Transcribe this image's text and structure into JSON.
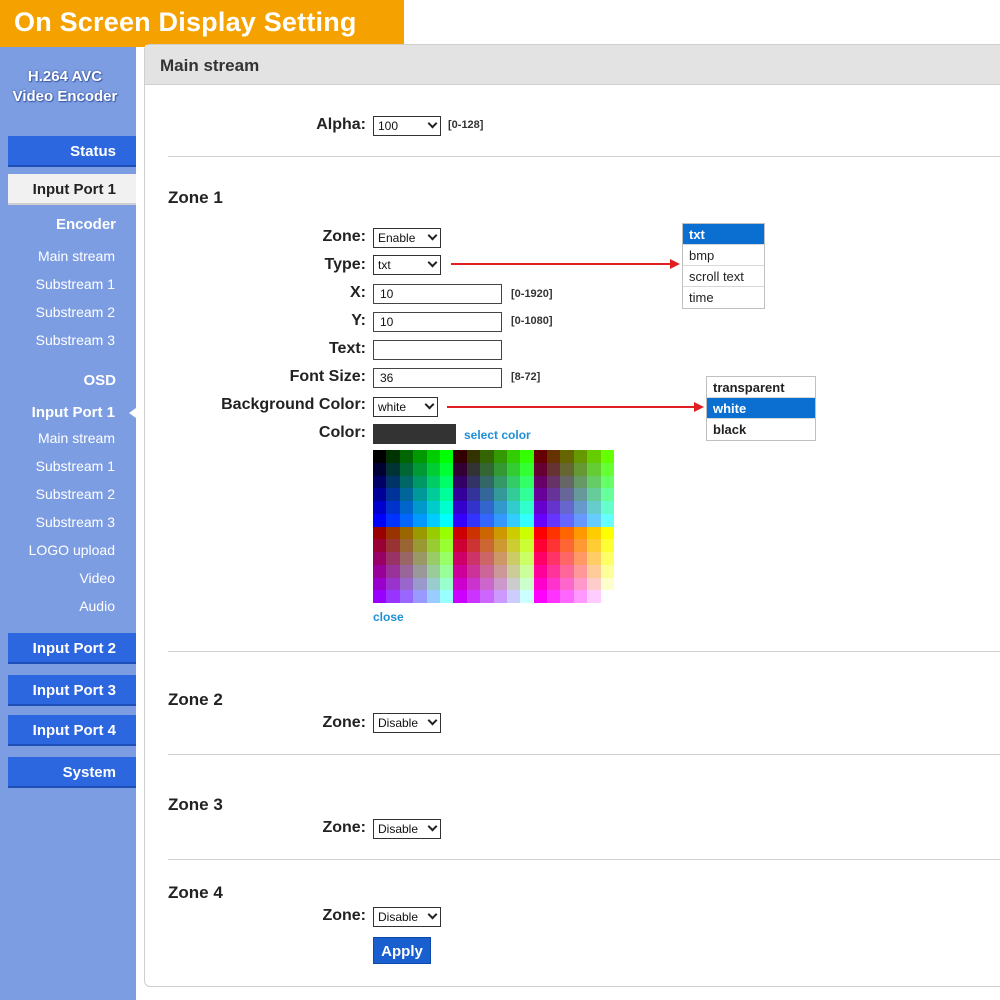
{
  "banner": {
    "title": "On Screen Display Setting"
  },
  "sidebar": {
    "brand_line1": "H.264 AVC",
    "brand_line2": "Video Encoder",
    "status": "Status",
    "input_port_1": "Input Port 1",
    "encoder_section": "Encoder",
    "encoder_items": [
      "Main stream",
      "Substream 1",
      "Substream 2",
      "Substream 3"
    ],
    "osd_section": "OSD",
    "osd_active": "Input Port 1",
    "osd_items": [
      "Main stream",
      "Substream 1",
      "Substream 2",
      "Substream 3",
      "LOGO upload",
      "Video",
      "Audio"
    ],
    "input_port_2": "Input Port 2",
    "input_port_3": "Input Port 3",
    "input_port_4": "Input Port 4",
    "system": "System"
  },
  "main": {
    "title": "Main stream",
    "alpha_label": "Alpha:",
    "alpha_value": "100",
    "alpha_range": "[0-128]",
    "zone1": {
      "title": "Zone 1",
      "zone_label": "Zone:",
      "zone_value": "Enable",
      "type_label": "Type:",
      "type_value": "txt",
      "x_label": "X:",
      "x_value": "10",
      "x_range": "[0-1920]",
      "y_label": "Y:",
      "y_value": "10",
      "y_range": "[0-1080]",
      "text_label": "Text:",
      "text_value": "",
      "font_size_label": "Font Size:",
      "font_size_value": "36",
      "font_size_range": "[8-72]",
      "bg_color_label": "Background Color:",
      "bg_color_value": "white",
      "color_label": "Color:",
      "color_value": "#333333",
      "select_color": "select color",
      "close": "close"
    },
    "type_options": [
      "txt",
      "bmp",
      "scroll text",
      "time"
    ],
    "type_selected": "txt",
    "bg_options": [
      "transparent",
      "white",
      "black"
    ],
    "bg_selected": "white",
    "zone2": {
      "title": "Zone 2",
      "zone_label": "Zone:",
      "zone_value": "Disable"
    },
    "zone3": {
      "title": "Zone 3",
      "zone_label": "Zone:",
      "zone_value": "Disable"
    },
    "zone4": {
      "title": "Zone 4",
      "zone_label": "Zone:",
      "zone_value": "Disable"
    },
    "apply": "Apply"
  },
  "colors": {
    "banner": "#f5a200",
    "sidebar": "#7d9de2",
    "nav_button": "#2c67e0",
    "accent_link": "#1f8fd6",
    "selected_option": "#0a6fd0",
    "arrow": "#e02020"
  }
}
